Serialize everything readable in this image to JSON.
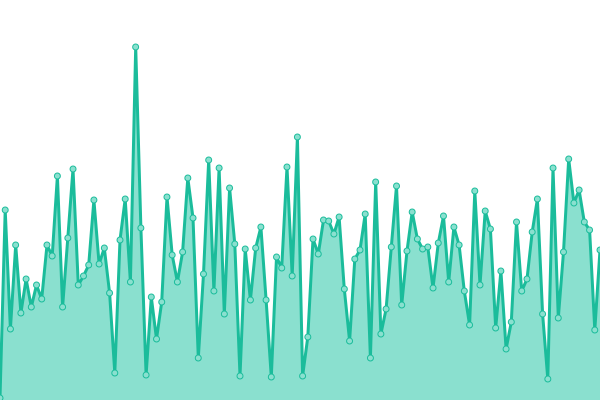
{
  "chart_data": {
    "type": "area",
    "title": "",
    "xlabel": "",
    "ylabel": "",
    "x_range": [
      0,
      115
    ],
    "ylim": [
      0,
      400
    ],
    "grid": false,
    "legend": "none",
    "colors": {
      "line": "#1bbc9b",
      "fill": "#8ae0cf",
      "marker_fill": "#8ae0cf"
    },
    "series": [
      {
        "values": [
          2,
          190,
          71,
          155,
          87,
          121,
          93,
          115,
          101,
          155,
          144,
          224,
          93,
          162,
          231,
          115,
          124,
          135,
          200,
          136,
          152,
          107,
          27,
          160,
          201,
          118,
          353,
          172,
          25,
          103,
          61,
          98,
          203,
          145,
          118,
          148,
          222,
          182,
          42,
          126,
          240,
          109,
          232,
          86,
          212,
          156,
          24,
          151,
          100,
          152,
          173,
          100,
          23,
          143,
          132,
          233,
          124,
          263,
          24,
          63,
          161,
          146,
          180,
          179,
          166,
          183,
          111,
          59,
          141,
          150,
          186,
          42,
          218,
          66,
          91,
          153,
          214,
          95,
          149,
          188,
          161,
          151,
          153,
          112,
          157,
          184,
          118,
          173,
          155,
          109,
          75,
          209,
          115,
          189,
          171,
          72,
          129,
          51,
          78,
          178,
          109,
          121,
          168,
          201,
          86,
          21,
          232,
          82,
          148,
          241,
          197,
          210,
          178,
          170,
          70,
          150
        ]
      }
    ]
  }
}
